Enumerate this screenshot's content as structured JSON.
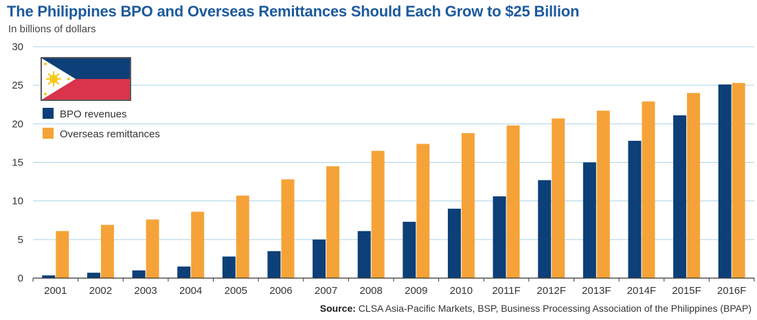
{
  "chart_data": {
    "type": "bar",
    "title": "The Philippines BPO and Overseas Remittances Should Each Grow to $25 Billion",
    "subtitle": "In billions of dollars",
    "source_label": "Source:",
    "source_text": "CLSA Asia-Pacific Markets, BSP, Business Processing Association of the Philippines (BPAP)",
    "categories": [
      "2001",
      "2002",
      "2003",
      "2004",
      "2005",
      "2006",
      "2007",
      "2008",
      "2009",
      "2010",
      "2011F",
      "2012F",
      "2013F",
      "2014F",
      "2015F",
      "2016F"
    ],
    "series": [
      {
        "name": "BPO revenues",
        "color": "#0d3f78",
        "values": [
          0.35,
          0.7,
          1.0,
          1.5,
          2.8,
          3.5,
          5.0,
          6.1,
          7.3,
          9.0,
          10.6,
          12.7,
          15.0,
          17.8,
          21.1,
          25.1
        ]
      },
      {
        "name": "Overseas remittances",
        "color": "#f5a338",
        "values": [
          6.1,
          6.9,
          7.6,
          8.6,
          10.7,
          12.8,
          14.5,
          16.5,
          17.4,
          18.8,
          19.8,
          20.7,
          21.7,
          22.9,
          24.0,
          25.3
        ]
      }
    ],
    "ylim": [
      0,
      30
    ],
    "yticks": [
      0,
      5,
      10,
      15,
      20,
      25,
      30
    ],
    "grid": true,
    "legend": "top-left",
    "flag_icon": "philippines-flag-icon"
  }
}
